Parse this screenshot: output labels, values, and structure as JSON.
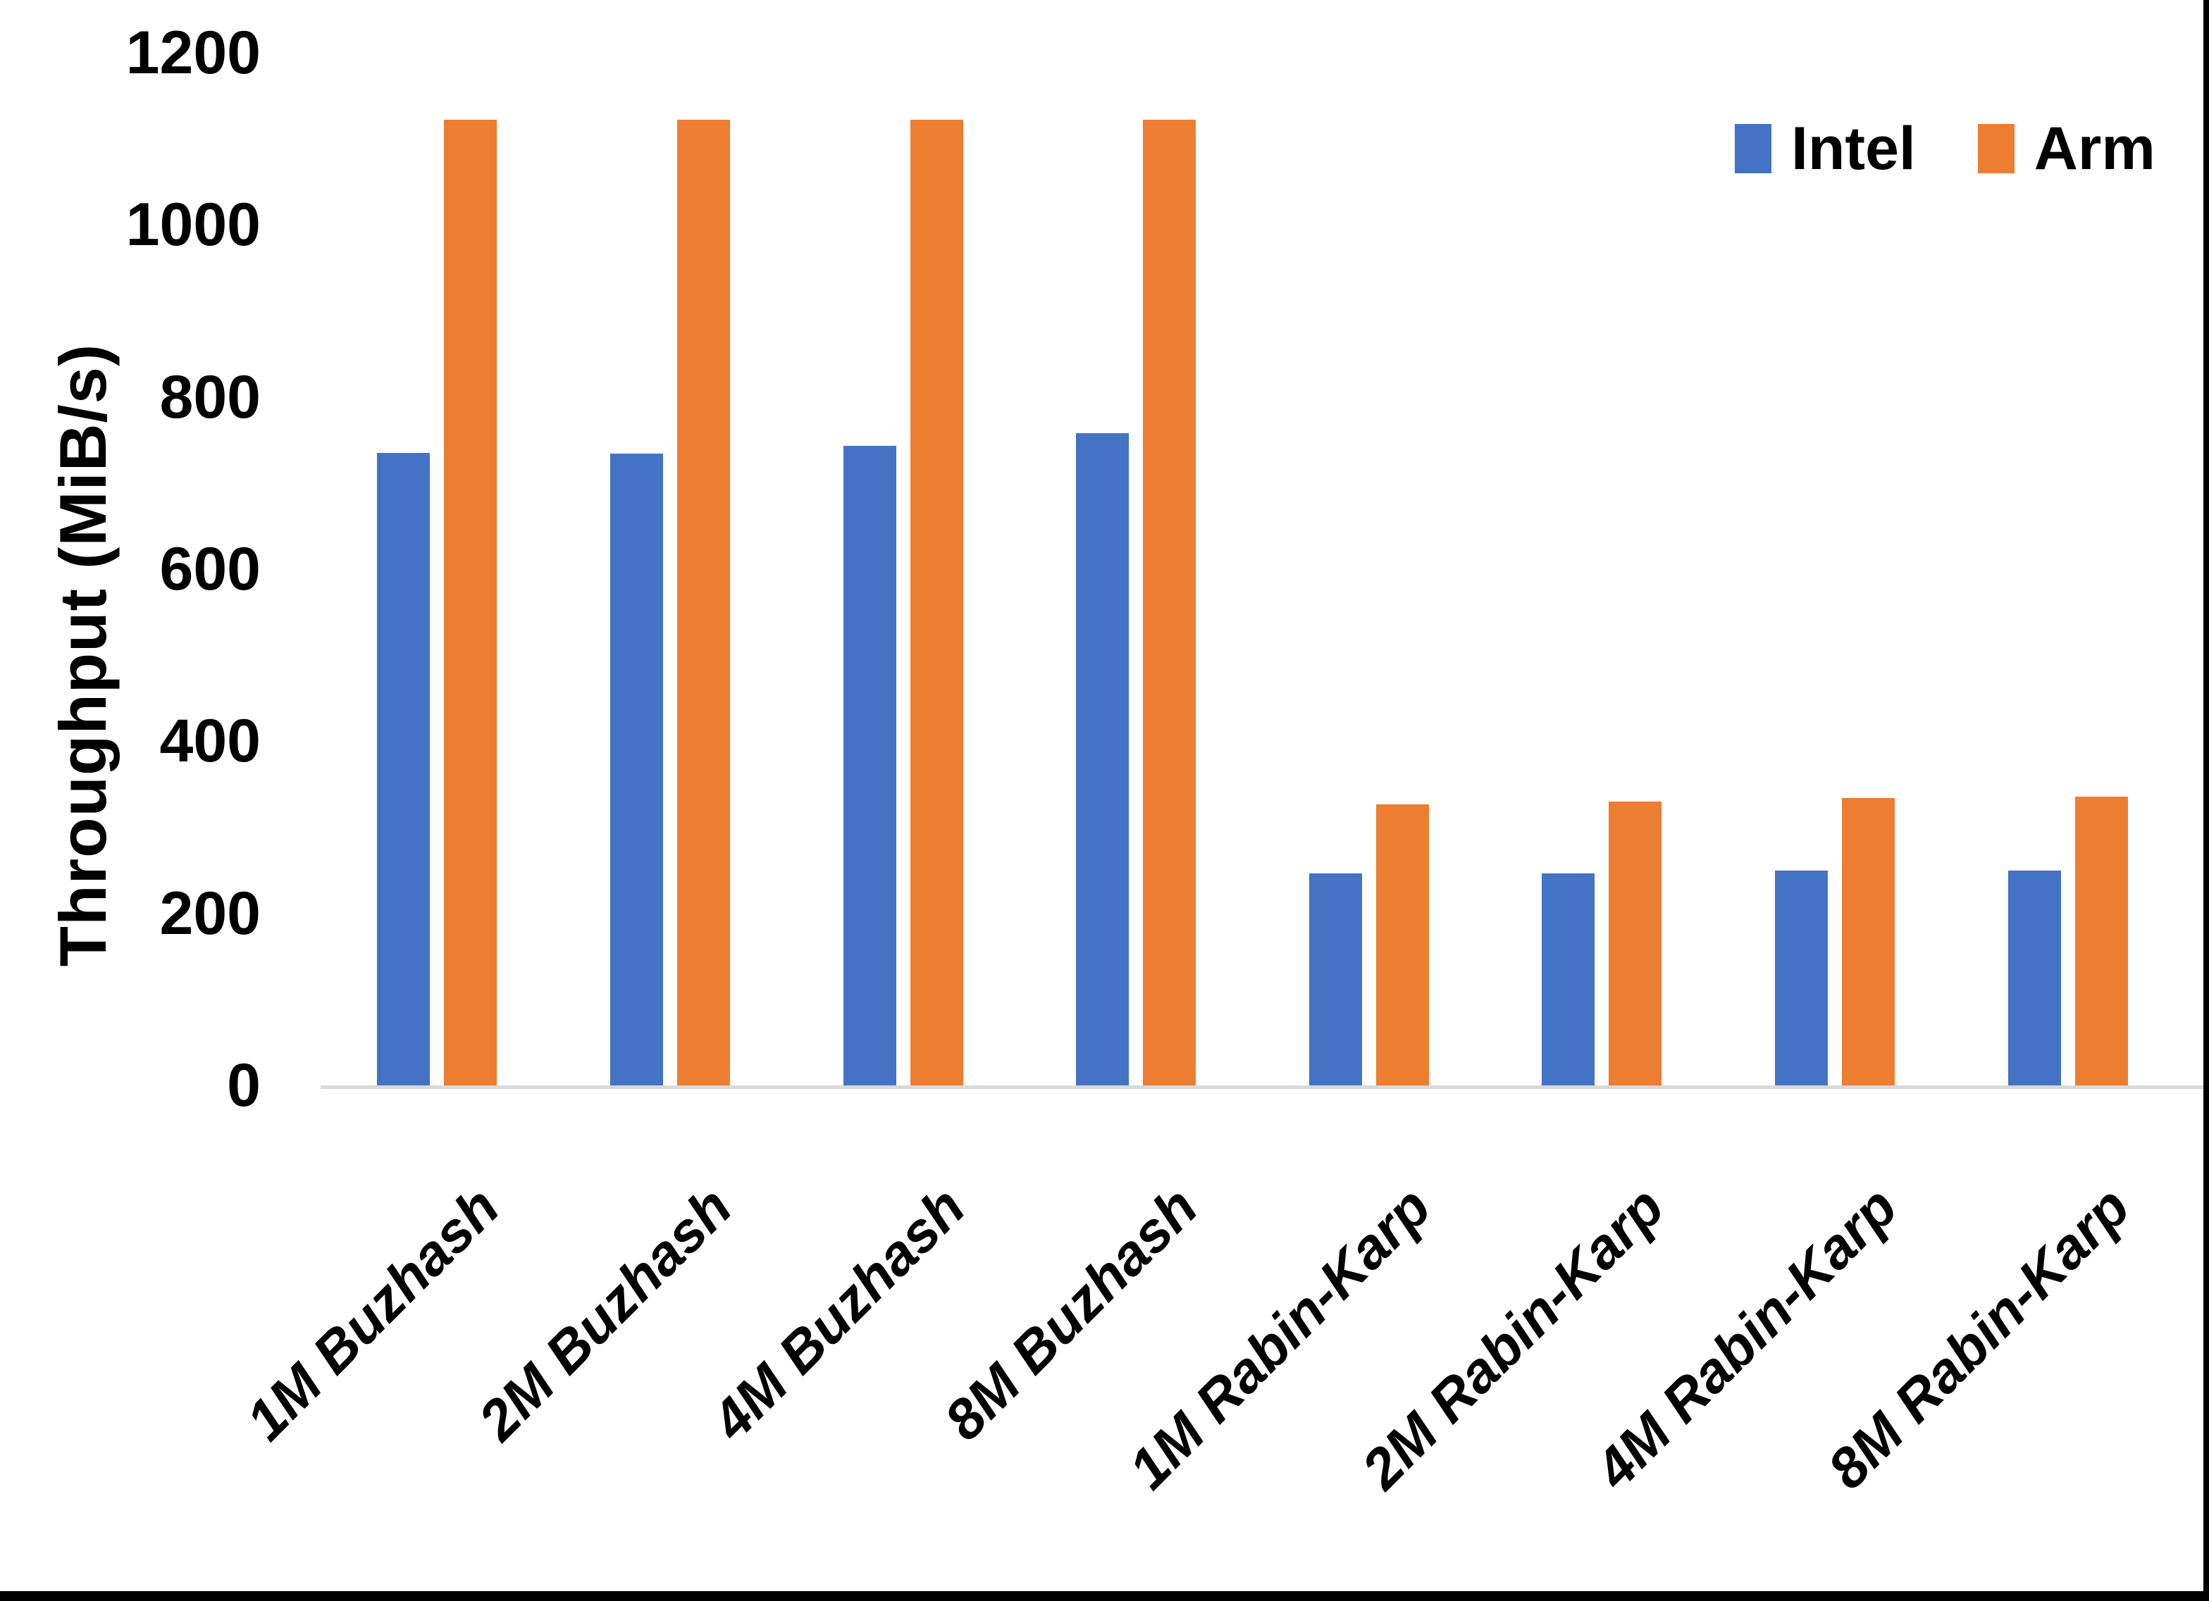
{
  "chart_data": {
    "type": "bar",
    "title": "",
    "xlabel": "",
    "ylabel": "Throughput (MiB/s)",
    "categories": [
      "1M Buzhash",
      "2M Buzhash",
      "4M Buzhash",
      "8M Buzhash",
      "1M Rabin-Karp",
      "2M Rabin-Karp",
      "4M Rabin-Karp",
      "8M Rabin-Karp"
    ],
    "series": [
      {
        "name": "Intel",
        "color": "#4472C4",
        "values": [
          735,
          734,
          743,
          758,
          246,
          246,
          250,
          250
        ]
      },
      {
        "name": "Arm",
        "color": "#ED7D31",
        "values": [
          1122,
          1122,
          1122,
          1122,
          327,
          330,
          334,
          336
        ]
      }
    ],
    "ylim": [
      0,
      1200
    ],
    "yticks": [
      0,
      200,
      400,
      600,
      800,
      1000,
      1200
    ],
    "grid": false,
    "legend_position": "top-right",
    "axis_line_color": "#D9D9D9",
    "background_color": "#FFFFFF",
    "text_color": "#000000"
  }
}
